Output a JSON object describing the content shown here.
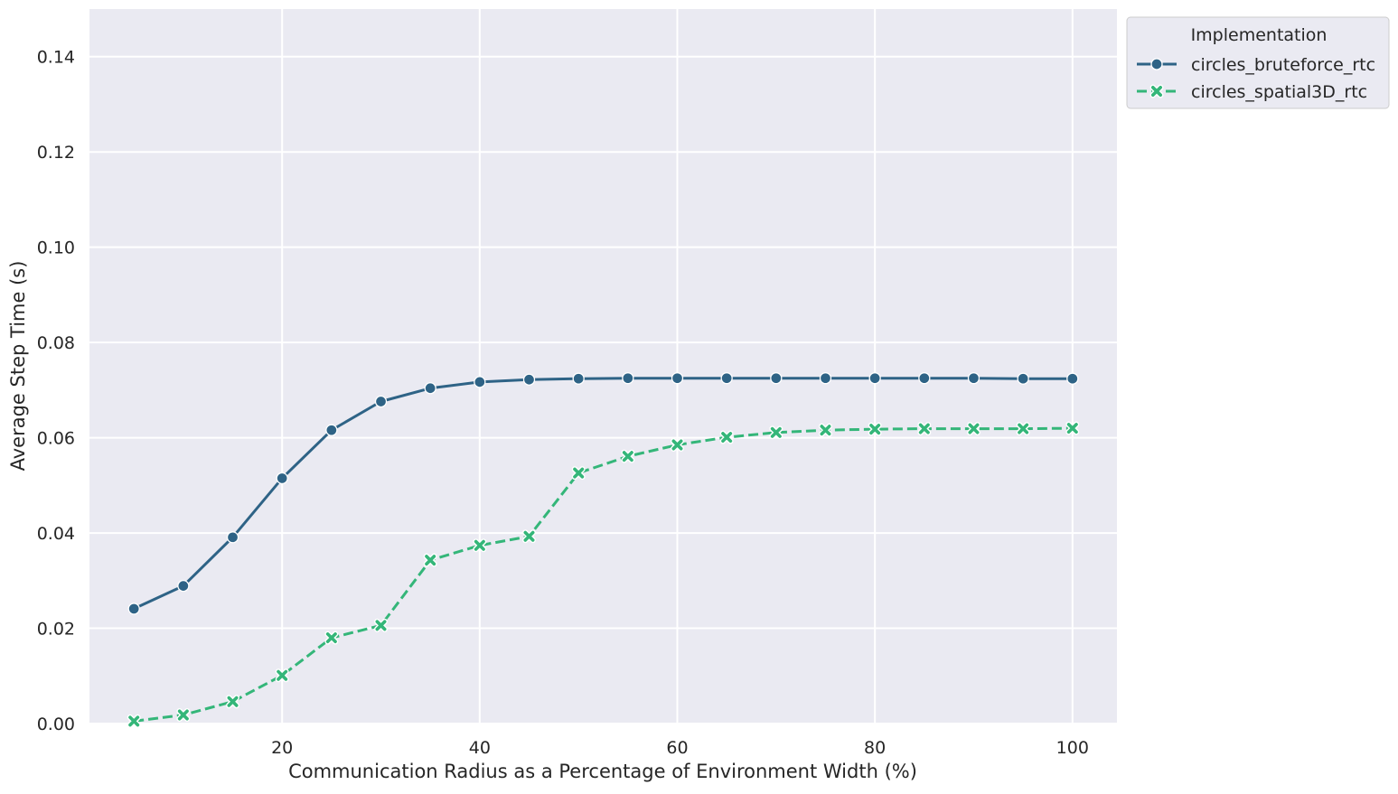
{
  "chart_data": {
    "type": "line",
    "title": "",
    "xlabel": "Communication Radius as a Percentage of Environment Width (%)",
    "ylabel": "Average Step Time (s)",
    "xlim": [
      0.5,
      104.5
    ],
    "ylim": [
      0,
      0.15
    ],
    "xticks": [
      20,
      40,
      60,
      80,
      100
    ],
    "xtick_labels": [
      "20",
      "40",
      "60",
      "80",
      "100"
    ],
    "yticks": [
      0,
      0.02,
      0.04,
      0.06,
      0.08,
      0.1,
      0.12,
      0.14
    ],
    "ytick_labels": [
      "0.00",
      "0.02",
      "0.04",
      "0.06",
      "0.08",
      "0.10",
      "0.12",
      "0.14"
    ],
    "grid": true,
    "legend_title": "Implementation",
    "legend_position": "upper right, outside plot",
    "x": [
      5,
      10,
      15,
      20,
      25,
      30,
      35,
      40,
      45,
      50,
      55,
      60,
      65,
      70,
      75,
      80,
      85,
      90,
      95,
      100
    ],
    "series": [
      {
        "name": "circles_bruteforce_rtc",
        "color": "#2e6386",
        "line_style": "solid",
        "marker": "circle",
        "values": [
          0.0241,
          0.0289,
          0.0391,
          0.0515,
          0.0616,
          0.0676,
          0.0704,
          0.0717,
          0.0722,
          0.0724,
          0.0725,
          0.0725,
          0.0725,
          0.0725,
          0.0725,
          0.0725,
          0.0725,
          0.0725,
          0.0724,
          0.0724
        ]
      },
      {
        "name": "circles_spatial3D_rtc",
        "color": "#34b679",
        "line_style": "dashed",
        "marker": "x",
        "values": [
          0.0005,
          0.0018,
          0.0046,
          0.0101,
          0.018,
          0.0206,
          0.0343,
          0.0374,
          0.0393,
          0.0526,
          0.0561,
          0.0585,
          0.0601,
          0.0611,
          0.0616,
          0.0618,
          0.0619,
          0.0619,
          0.0619,
          0.062
        ]
      }
    ]
  }
}
